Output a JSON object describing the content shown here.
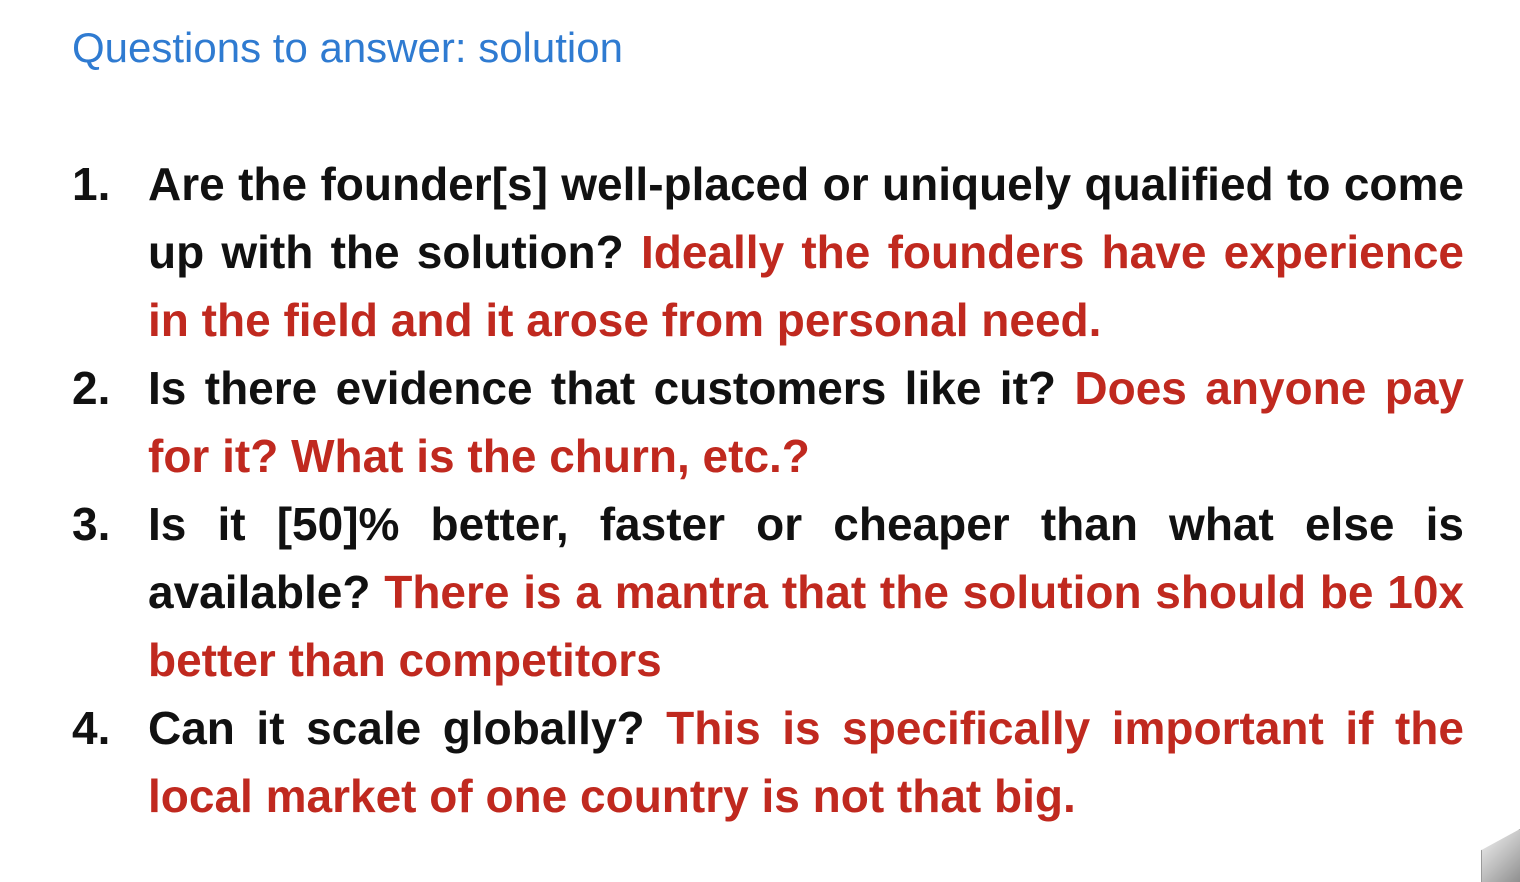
{
  "slide": {
    "title": "Questions to answer: solution",
    "questions": [
      {
        "number": "1.",
        "question": "Are the founder[s] well-placed or uniquely qualified to come up with the solution?",
        "note": "Ideally the founders have experience in the field and it arose from personal need."
      },
      {
        "number": "2.",
        "question": "Is there evidence that customers like it?",
        "note": "Does anyone pay for it? What is the churn, etc.?"
      },
      {
        "number": "3.",
        "question": "Is it [50]% better, faster or cheaper than what else is available?",
        "note": "There is a mantra that the solution should be 10x better than competitors"
      },
      {
        "number": "4.",
        "question": "Can it scale globally?",
        "note": "This is specifically important if the local market of one country is not that big."
      }
    ]
  },
  "colors": {
    "title": "#2f7bd1",
    "question": "#111111",
    "note": "#c0291f",
    "background": "#ffffff"
  }
}
